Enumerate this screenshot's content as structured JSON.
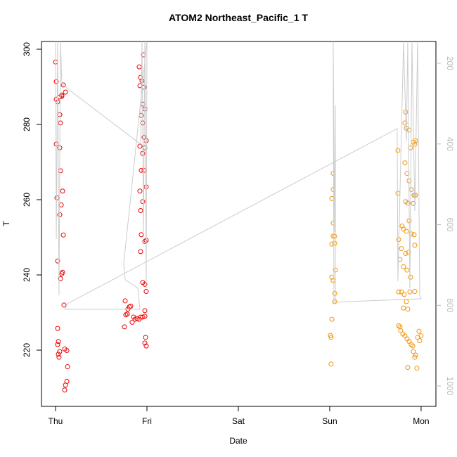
{
  "chart_data": {
    "type": "scatter",
    "title": "ATOM2 Northeast_Pacific_1 T",
    "x_label": "Date",
    "y_label": "T",
    "xlim": [
      -0.154,
      4.162
    ],
    "xticks": [
      {
        "value": 0,
        "label": "Thu"
      },
      {
        "value": 1,
        "label": "Fri"
      },
      {
        "value": 2,
        "label": "Sat"
      },
      {
        "value": 3,
        "label": "Sun"
      },
      {
        "value": 4,
        "label": "Mon"
      }
    ],
    "ylim": [
      205.05,
      302.06
    ],
    "yticks": [
      220,
      240,
      260,
      280,
      300
    ],
    "y2lim": [
      1050.5,
      146
    ],
    "y2ticks": [
      200,
      400,
      600,
      800,
      1000
    ],
    "series": [
      {
        "color": "#ee0000",
        "x": [
          0,
          0.008,
          0.008,
          0.023,
          0.008,
          0.046,
          0.046,
          0.054,
          0.046,
          0.069,
          0.085,
          0.054,
          0.077,
          0.015,
          0.062,
          0.046,
          0.085,
          0.023,
          0.069,
          0.054,
          0.077,
          0.092,
          0.023,
          0.023,
          0.046,
          0.031,
          0.038,
          0.031,
          0.1,
          0.123,
          0.131,
          0.123,
          0.108,
          0.1,
          0.108,
          0.069,
          0.754,
          0.762,
          0.769,
          0.785,
          0.792,
          0.808,
          0.823,
          0.838,
          0.854,
          0.869,
          0.892,
          0.915,
          0.931,
          0.954,
          0.977,
          0.962,
          0.915,
          0.931,
          0.946,
          0.923,
          0.969,
          0.954,
          0.977,
          0.938,
          0.954,
          0.969,
          0.992,
          0.923,
          0.977,
          0.954,
          0.938,
          0.969,
          0.992,
          0.923,
          0.954,
          0.931,
          0.938,
          0.977,
          0.992,
          0.931,
          0.954,
          0.977,
          0.992,
          0.977,
          0.985,
          0.977,
          0.992
        ],
        "values": [
          296.6,
          291.4,
          286.7,
          286,
          274.8,
          273.8,
          282.6,
          280.4,
          287.3,
          287.5,
          290.5,
          267.7,
          262.3,
          260.5,
          258.6,
          256,
          250.6,
          243.7,
          240.3,
          239,
          240.7,
          232,
          225.8,
          221.5,
          219.6,
          218.9,
          218.1,
          222.3,
          220.3,
          219.9,
          215.6,
          211.7,
          210.7,
          209.4,
          288.6,
          287.8,
          226.2,
          233.1,
          229.4,
          229.6,
          230.9,
          231.5,
          231.7,
          227.4,
          228.8,
          228.2,
          228.4,
          228.2,
          228.8,
          228.8,
          229,
          298.5,
          295.3,
          292.5,
          291.6,
          290.3,
          289.9,
          285.4,
          284.1,
          282.4,
          280.4,
          276.6,
          275.7,
          274.2,
          273.8,
          272.3,
          267.8,
          267.8,
          263.4,
          262.3,
          259.5,
          257.1,
          250.7,
          248.9,
          249.2,
          246.2,
          238,
          237.5,
          235.6,
          230.5,
          223.4,
          221.9,
          221.1
        ]
      },
      {
        "color": "#f0950e",
        "x": [
          3.038,
          3.038,
          3.023,
          3.038,
          3.038,
          3.054,
          3.023,
          3.054,
          3.062,
          3.023,
          3.038,
          3.054,
          3.054,
          3.023,
          3.008,
          3.015,
          3.015,
          3.746,
          3.746,
          3.831,
          3.823,
          3.838,
          3.869,
          3.885,
          3.915,
          3.938,
          3.931,
          3.823,
          3.846,
          3.869,
          3.892,
          3.923,
          3.938,
          3.831,
          3.854,
          3.915,
          3.792,
          3.808,
          3.838,
          3.869,
          3.892,
          3.923,
          3.754,
          3.785,
          3.831,
          3.862,
          3.931,
          3.769,
          3.808,
          3.846,
          3.885,
          3.754,
          3.785,
          3.815,
          3.838,
          3.877,
          3.931,
          3.808,
          3.854,
          3.754,
          3.769,
          3.777,
          3.8,
          3.823,
          3.846,
          3.869,
          3.892,
          3.915,
          3.938,
          3.962,
          3.985,
          4,
          3.977,
          3.854,
          3.954,
          3.908,
          3.931
        ],
        "values": [
          267,
          262.7,
          260.3,
          253.8,
          250.3,
          250.3,
          248.2,
          248.4,
          241.3,
          239.4,
          238.5,
          235.1,
          232.9,
          228.2,
          223.9,
          223.4,
          216.3,
          273.1,
          261.7,
          283.3,
          280.4,
          279,
          278.5,
          273.8,
          275.3,
          275.7,
          274.8,
          269.8,
          267,
          265,
          262.7,
          261.2,
          261.2,
          259.5,
          259.1,
          259,
          253,
          252.2,
          251.6,
          254.4,
          250.9,
          250.7,
          249.4,
          247,
          245.7,
          246,
          247.9,
          244.1,
          242.2,
          241.3,
          239.4,
          235.5,
          235.5,
          234.8,
          232.9,
          235.5,
          235.6,
          231.2,
          230.9,
          226.5,
          226.2,
          225.2,
          224.3,
          223.8,
          223,
          222.3,
          221.5,
          219.6,
          218.7,
          223.4,
          222.5,
          223.8,
          225,
          215.4,
          215.2,
          221.1,
          218.1
        ]
      },
      {
        "color": "#cccccc",
        "axis": "y2",
        "line": true,
        "x": [
          0,
          0.008,
          0.023,
          0.038,
          0.054,
          0.069,
          0.931,
          0.946,
          0.962,
          0.977,
          0.992,
          1,
          0.746,
          0.762,
          0.9,
          0.923,
          0.1,
          0.131,
          3.738,
          3.746,
          3.808,
          3.838,
          3.854,
          3.877,
          3.9,
          3.931,
          3.962,
          3.985,
          4,
          3.046,
          3.038,
          3.054,
          3.062,
          3.062
        ],
        "values": [
          146,
          635.5,
          146,
          775,
          146,
          252.3,
          400.4,
          146,
          618.1,
          146,
          757.5,
          146,
          696.5,
          736.6,
          757.5,
          809.8,
          809.8,
          795.8,
          362,
          740.1,
          146,
          391.6,
          146,
          757.5,
          146,
          565.9,
          146,
          775,
          783.6,
          792.3,
          146,
          618.1,
          304.5,
          792.3
        ]
      }
    ]
  }
}
